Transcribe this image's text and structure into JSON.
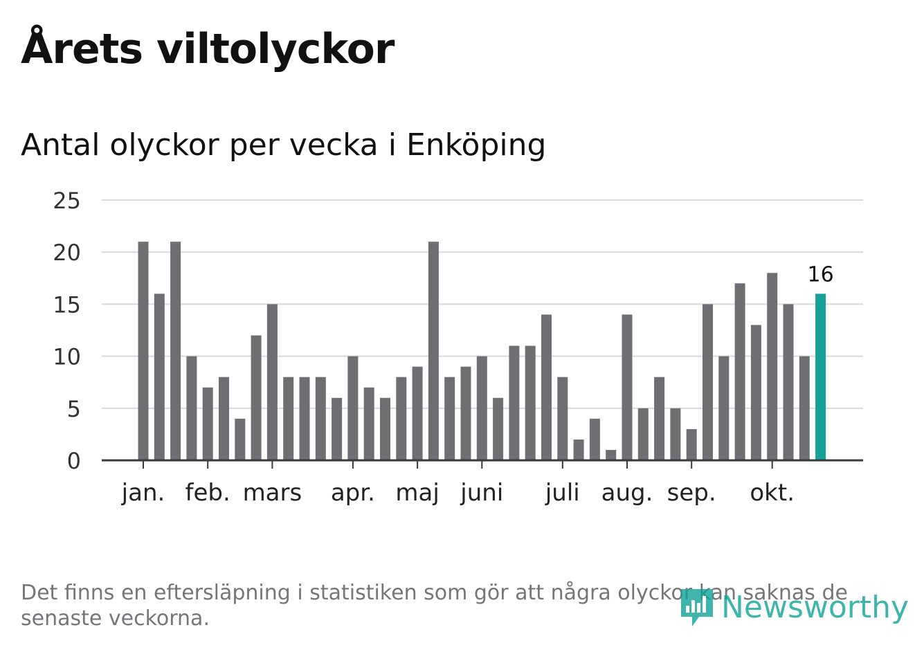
{
  "header": {
    "title": "Årets viltolyckor",
    "subtitle": "Antal olyckor per vecka i Enköping"
  },
  "footer": {
    "note": "Det finns en eftersläpning i statistiken som gör att några olyckor kan saknas de senaste veckorna.",
    "brand": "Newsworthy",
    "brand_icon": "newsworthy-logo-icon"
  },
  "colors": {
    "bar": "#6f6e73",
    "highlight": "#16a096",
    "grid": "#d9d9d9",
    "axis": "#3a3a3a",
    "brand": "#0fa396"
  },
  "chart_data": {
    "type": "bar",
    "ylim": [
      0,
      25
    ],
    "yticks": [
      0,
      5,
      10,
      15,
      20,
      25
    ],
    "grid": true,
    "values": [
      21,
      16,
      21,
      10,
      7,
      8,
      4,
      12,
      15,
      8,
      8,
      8,
      6,
      10,
      7,
      6,
      8,
      9,
      21,
      8,
      9,
      10,
      6,
      11,
      11,
      14,
      8,
      2,
      4,
      1,
      14,
      5,
      8,
      5,
      3,
      15,
      10,
      17,
      13,
      18,
      15,
      10,
      16
    ],
    "highlight_index": 42,
    "highlight_label": "16",
    "month_labels": [
      {
        "label": "jan.",
        "bar": 0
      },
      {
        "label": "feb.",
        "bar": 4
      },
      {
        "label": "mars",
        "bar": 8
      },
      {
        "label": "apr.",
        "bar": 13
      },
      {
        "label": "maj",
        "bar": 17
      },
      {
        "label": "juni",
        "bar": 21
      },
      {
        "label": "juli",
        "bar": 26
      },
      {
        "label": "aug.",
        "bar": 30
      },
      {
        "label": "sep.",
        "bar": 34
      },
      {
        "label": "okt.",
        "bar": 39
      }
    ]
  }
}
